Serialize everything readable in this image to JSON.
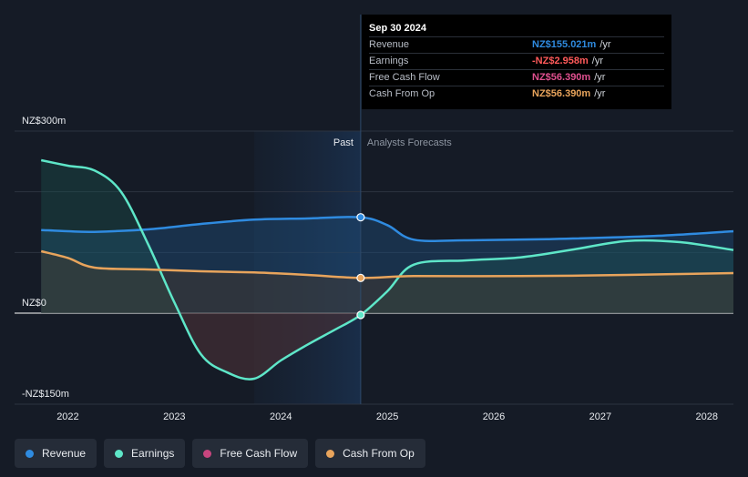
{
  "tooltip": {
    "date": "Sep 30 2024",
    "rows": [
      {
        "label": "Revenue",
        "value": "NZ$155.021m",
        "unit": "/yr",
        "color": "#2f8be0"
      },
      {
        "label": "Earnings",
        "value": "-NZ$2.958m",
        "unit": "/yr",
        "color": "#ff5a5a"
      },
      {
        "label": "Free Cash Flow",
        "value": "NZ$56.390m",
        "unit": "/yr",
        "color": "#e0508f"
      },
      {
        "label": "Cash From Op",
        "value": "NZ$56.390m",
        "unit": "/yr",
        "color": "#e8a45c"
      }
    ]
  },
  "labels": {
    "past": "Past",
    "forecast": "Analysts Forecasts"
  },
  "legend": [
    {
      "label": "Revenue",
      "color": "#2f8be0"
    },
    {
      "label": "Earnings",
      "color": "#5ee6c8"
    },
    {
      "label": "Free Cash Flow",
      "color": "#c7457e"
    },
    {
      "label": "Cash From Op",
      "color": "#e8a45c"
    }
  ],
  "chart_data": {
    "type": "line",
    "x_ticks": [
      "2022",
      "2023",
      "2024",
      "2025",
      "2026",
      "2027",
      "2028"
    ],
    "y_ticks": [
      {
        "value": 300,
        "label": "NZ$300m"
      },
      {
        "value": 0,
        "label": "NZ$0"
      },
      {
        "value": -150,
        "label": "-NZ$150m"
      }
    ],
    "ylim": [
      -150,
      300
    ],
    "xlim": [
      2021.5,
      2028.25
    ],
    "past_start": 2023.75,
    "past_end": 2024.75,
    "series": [
      {
        "name": "Revenue",
        "color": "#2f8be0",
        "points": [
          [
            2021.75,
            137
          ],
          [
            2022.0,
            135
          ],
          [
            2022.25,
            134
          ],
          [
            2022.75,
            138
          ],
          [
            2023.25,
            147
          ],
          [
            2023.75,
            154
          ],
          [
            2024.25,
            156
          ],
          [
            2024.75,
            158
          ],
          [
            2025.0,
            145
          ],
          [
            2025.25,
            121
          ],
          [
            2025.75,
            120
          ],
          [
            2026.5,
            122
          ],
          [
            2027.5,
            127
          ],
          [
            2028.25,
            135
          ]
        ]
      },
      {
        "name": "Earnings",
        "color": "#5ee6c8",
        "points": [
          [
            2021.75,
            252
          ],
          [
            2022.0,
            243
          ],
          [
            2022.25,
            235
          ],
          [
            2022.5,
            200
          ],
          [
            2022.75,
            115
          ],
          [
            2023.0,
            18
          ],
          [
            2023.25,
            -68
          ],
          [
            2023.5,
            -98
          ],
          [
            2023.75,
            -108
          ],
          [
            2024.0,
            -78
          ],
          [
            2024.25,
            -52
          ],
          [
            2024.5,
            -28
          ],
          [
            2024.75,
            -3
          ],
          [
            2025.0,
            36
          ],
          [
            2025.25,
            80
          ],
          [
            2025.75,
            87
          ],
          [
            2026.25,
            92
          ],
          [
            2026.75,
            105
          ],
          [
            2027.25,
            119
          ],
          [
            2027.75,
            117
          ],
          [
            2028.25,
            104
          ]
        ]
      },
      {
        "name": "Cash From Op",
        "color": "#e8a45c",
        "points": [
          [
            2021.75,
            102
          ],
          [
            2022.0,
            91
          ],
          [
            2022.25,
            75
          ],
          [
            2022.75,
            72
          ],
          [
            2023.25,
            69
          ],
          [
            2023.75,
            67
          ],
          [
            2024.25,
            63
          ],
          [
            2024.75,
            58
          ],
          [
            2025.25,
            61
          ],
          [
            2026.25,
            61
          ],
          [
            2027.25,
            63
          ],
          [
            2028.25,
            66
          ]
        ]
      }
    ],
    "markers_x": 2024.75
  }
}
